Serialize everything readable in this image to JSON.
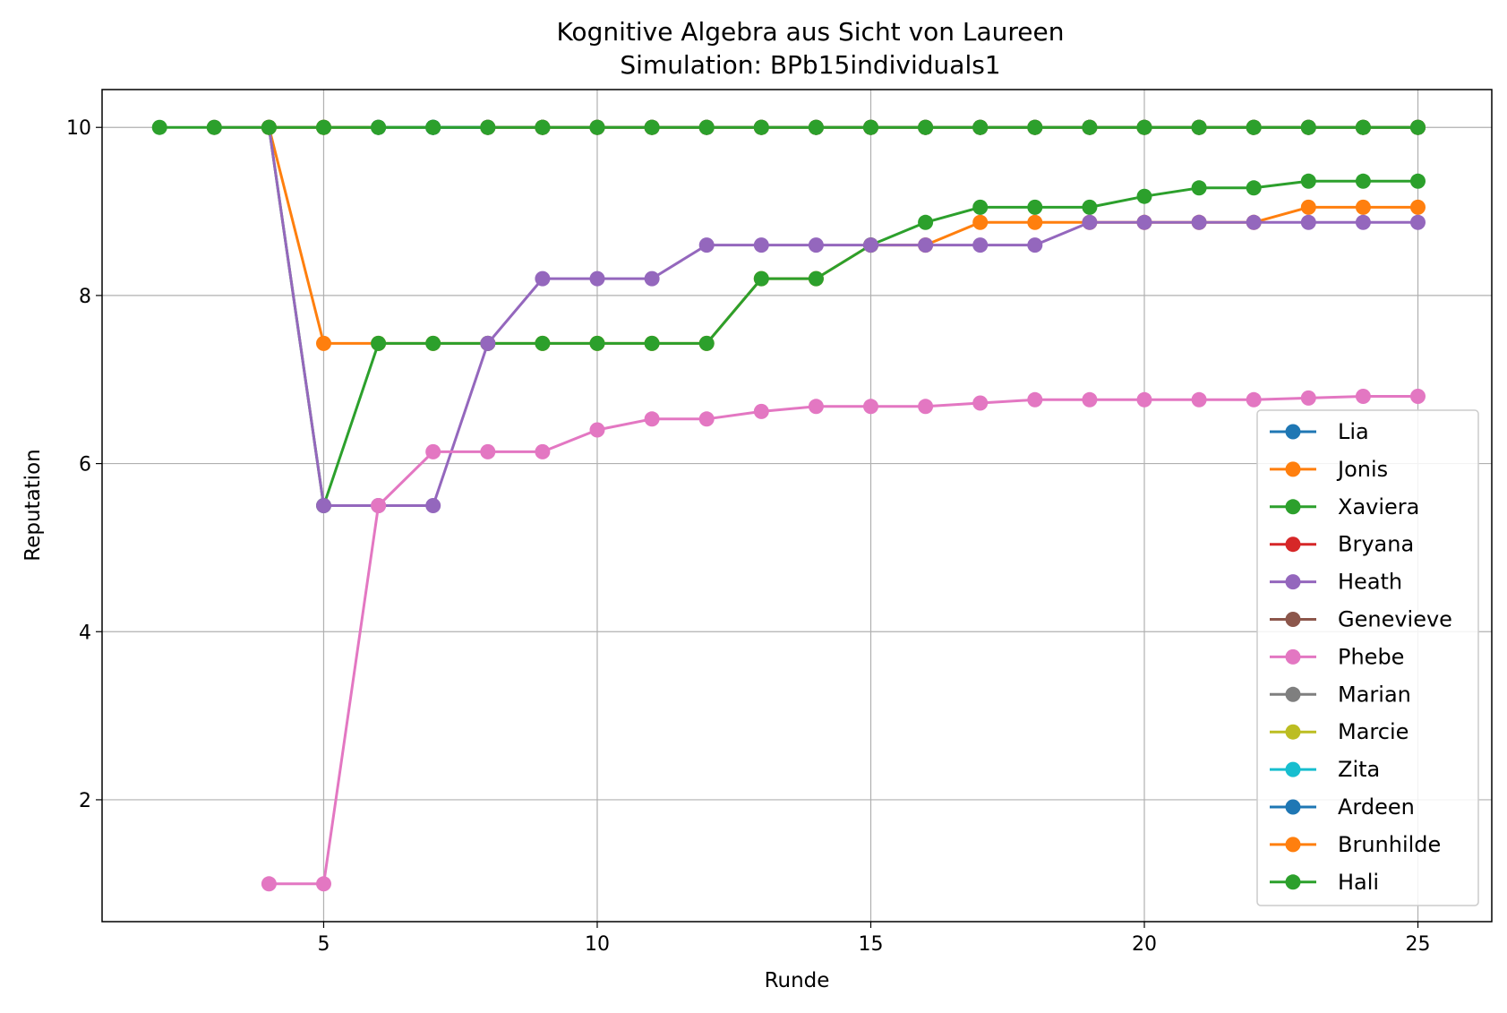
{
  "chart_data": {
    "type": "line",
    "title": "Kognitive Algebra aus Sicht von Laureen",
    "subtitle": "Simulation: BPb15individuals1",
    "xlabel": "Runde",
    "ylabel": "Reputation",
    "xlim": [
      0.95,
      26.35
    ],
    "ylim": [
      0.55,
      10.45
    ],
    "xticks": [
      5,
      10,
      15,
      20,
      25
    ],
    "yticks": [
      2,
      4,
      6,
      8,
      10
    ],
    "grid": true,
    "legend_position": "lower-right",
    "series": [
      {
        "name": "Lia",
        "color": "#1f77b4",
        "x": [
          7,
          8,
          9,
          10,
          11,
          12,
          13,
          14,
          15,
          16,
          17,
          18,
          19,
          20,
          21,
          22,
          23,
          24,
          25
        ],
        "y": [
          10,
          10,
          10,
          10,
          10,
          10,
          10,
          10,
          10,
          10,
          10,
          10,
          10,
          10,
          10,
          10,
          10,
          10,
          10
        ]
      },
      {
        "name": "Jonis",
        "color": "#ff7f0e",
        "x": [
          4,
          5,
          6,
          7,
          8,
          9,
          10,
          11,
          12,
          13,
          14,
          15,
          16,
          17,
          18,
          19,
          20,
          21,
          22,
          23,
          24,
          25
        ],
        "y": [
          10,
          7.43,
          7.43,
          7.43,
          7.43,
          7.43,
          7.43,
          7.43,
          7.43,
          8.2,
          8.2,
          8.6,
          8.6,
          8.87,
          8.87,
          8.87,
          8.87,
          8.87,
          8.87,
          9.05,
          9.05,
          9.05
        ]
      },
      {
        "name": "Xaviera",
        "color": "#2ca02c",
        "x": [
          4,
          5,
          6,
          7,
          8,
          9,
          10,
          11,
          12,
          13,
          14,
          15,
          16,
          17,
          18,
          19,
          20,
          21,
          22,
          23,
          24,
          25
        ],
        "y": [
          10,
          5.5,
          7.43,
          7.43,
          7.43,
          7.43,
          7.43,
          7.43,
          7.43,
          8.2,
          8.2,
          8.6,
          8.87,
          9.05,
          9.05,
          9.05,
          9.18,
          9.28,
          9.28,
          9.36,
          9.36,
          9.36
        ]
      },
      {
        "name": "Bryana",
        "color": "#d62728",
        "x": [
          4,
          5,
          6,
          7,
          8,
          9,
          10,
          11,
          12,
          13,
          14,
          15,
          16,
          17,
          18,
          19,
          20,
          21,
          22,
          23,
          24,
          25
        ],
        "y": [
          10,
          10,
          10,
          10,
          10,
          10,
          10,
          10,
          10,
          10,
          10,
          10,
          10,
          10,
          10,
          10,
          10,
          10,
          10,
          10,
          10,
          10
        ]
      },
      {
        "name": "Heath",
        "color": "#9467bd",
        "x": [
          4,
          5,
          6,
          7,
          8,
          9,
          10,
          11,
          12,
          13,
          14,
          15,
          16,
          17,
          18,
          19,
          20,
          21,
          22,
          23,
          24,
          25
        ],
        "y": [
          10,
          5.5,
          5.5,
          5.5,
          7.43,
          8.2,
          8.2,
          8.2,
          8.6,
          8.6,
          8.6,
          8.6,
          8.6,
          8.6,
          8.6,
          8.87,
          8.87,
          8.87,
          8.87,
          8.87,
          8.87,
          8.87
        ]
      },
      {
        "name": "Genevieve",
        "color": "#8c564b",
        "x": [
          3,
          4,
          5,
          6,
          7,
          8,
          9,
          10,
          11,
          12,
          13,
          14,
          15,
          16,
          17,
          18,
          19,
          20,
          21,
          22,
          23,
          24,
          25
        ],
        "y": [
          10,
          10,
          10,
          10,
          10,
          10,
          10,
          10,
          10,
          10,
          10,
          10,
          10,
          10,
          10,
          10,
          10,
          10,
          10,
          10,
          10,
          10,
          10
        ]
      },
      {
        "name": "Phebe",
        "color": "#e377c2",
        "x": [
          4,
          5,
          6,
          7,
          8,
          9,
          10,
          11,
          12,
          13,
          14,
          15,
          16,
          17,
          18,
          19,
          20,
          21,
          22,
          23,
          24,
          25
        ],
        "y": [
          1,
          1,
          5.5,
          6.14,
          6.14,
          6.14,
          6.4,
          6.53,
          6.53,
          6.62,
          6.68,
          6.68,
          6.68,
          6.72,
          6.76,
          6.76,
          6.76,
          6.76,
          6.76,
          6.78,
          6.8,
          6.8
        ]
      },
      {
        "name": "Marian",
        "color": "#7f7f7f",
        "x": [
          4,
          5,
          6,
          7,
          8,
          9,
          10,
          11,
          12,
          13,
          14,
          15,
          16,
          17,
          18,
          19,
          20,
          21,
          22,
          23,
          24,
          25
        ],
        "y": [
          10,
          10,
          10,
          10,
          10,
          10,
          10,
          10,
          10,
          10,
          10,
          10,
          10,
          10,
          10,
          10,
          10,
          10,
          10,
          10,
          10,
          10
        ]
      },
      {
        "name": "Marcie",
        "color": "#bcbd22",
        "x": [
          4,
          5,
          6,
          7,
          8,
          9,
          10,
          11,
          12,
          13,
          14,
          15,
          16,
          17,
          18,
          19,
          20,
          21,
          22,
          23,
          24,
          25
        ],
        "y": [
          10,
          10,
          10,
          10,
          10,
          10,
          10,
          10,
          10,
          10,
          10,
          10,
          10,
          10,
          10,
          10,
          10,
          10,
          10,
          10,
          10,
          10
        ]
      },
      {
        "name": "Zita",
        "color": "#17becf",
        "x": [
          6,
          7,
          8,
          9,
          10,
          11,
          12,
          13,
          14,
          15,
          16,
          17,
          18,
          19,
          20,
          21,
          22,
          23,
          24,
          25
        ],
        "y": [
          10,
          10,
          10,
          10,
          10,
          10,
          10,
          10,
          10,
          10,
          10,
          10,
          10,
          10,
          10,
          10,
          10,
          10,
          10,
          10
        ]
      },
      {
        "name": "Ardeen",
        "color": "#1f77b4",
        "x": [
          7,
          8,
          9,
          10,
          11,
          12,
          13,
          14,
          15,
          16,
          17,
          18,
          19,
          20,
          21,
          22,
          23,
          24,
          25
        ],
        "y": [
          10,
          10,
          10,
          10,
          10,
          10,
          10,
          10,
          10,
          10,
          10,
          10,
          10,
          10,
          10,
          10,
          10,
          10,
          10
        ]
      },
      {
        "name": "Brunhilde",
        "color": "#ff7f0e",
        "x": [
          8,
          9,
          10,
          11,
          12,
          13,
          14,
          15,
          16,
          17,
          18,
          19,
          20,
          21,
          22,
          23,
          24,
          25
        ],
        "y": [
          10,
          10,
          10,
          10,
          10,
          10,
          10,
          10,
          10,
          10,
          10,
          10,
          10,
          10,
          10,
          10,
          10,
          10
        ]
      },
      {
        "name": "Hali",
        "color": "#2ca02c",
        "x": [
          2,
          3,
          4,
          5,
          6,
          7,
          8,
          9,
          10,
          11,
          12,
          13,
          14,
          15,
          16,
          17,
          18,
          19,
          20,
          21,
          22,
          23,
          24,
          25
        ],
        "y": [
          10,
          10,
          10,
          10,
          10,
          10,
          10,
          10,
          10,
          10,
          10,
          10,
          10,
          10,
          10,
          10,
          10,
          10,
          10,
          10,
          10,
          10,
          10,
          10
        ]
      }
    ]
  }
}
